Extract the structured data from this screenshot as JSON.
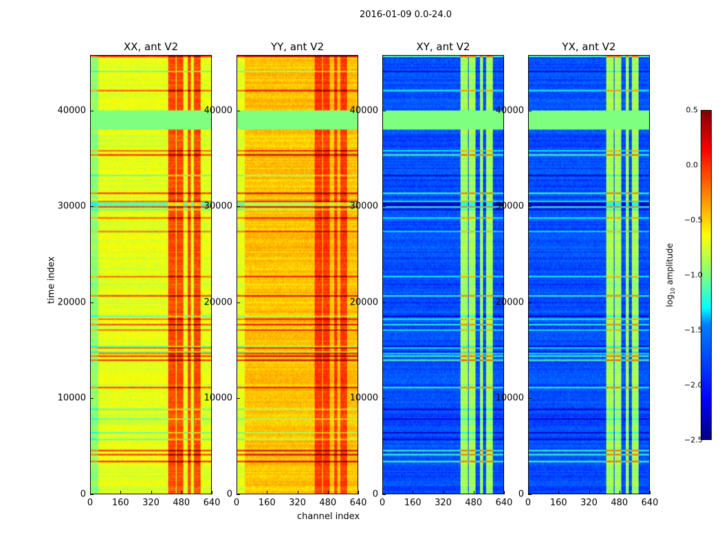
{
  "figure": {
    "suptitle": "2016-01-09 0.0-24.0"
  },
  "chart_data": {
    "type": "heatmap",
    "xlabel": "channel index",
    "ylabel": "time index",
    "xlim": [
      0,
      640
    ],
    "ylim": [
      0,
      45800
    ],
    "xticks": [
      "0",
      "160",
      "320",
      "480",
      "640"
    ],
    "yticks": [
      "0",
      "10000",
      "20000",
      "30000",
      "40000"
    ],
    "colorbar": {
      "label_prefix": "log",
      "label_sub": "10",
      "label_suffix": " amplitude",
      "range": [
        -2.5,
        0.5
      ],
      "ticks": [
        "0.5",
        "0.0",
        "−0.5",
        "−1.0",
        "−1.5",
        "−2.0",
        "−2.5"
      ],
      "colormap": "jet"
    },
    "flagged_time_range": [
      38200,
      40100
    ],
    "flagged_value": -1.0,
    "rfi_channel_ranges": [
      [
        410,
        450
      ],
      [
        455,
        490
      ],
      [
        515,
        530
      ],
      [
        545,
        580
      ]
    ],
    "panels": [
      {
        "title": "XX, ant V2",
        "base_level": -0.7,
        "rfi_level": -0.1
      },
      {
        "title": "YY, ant V2",
        "base_level": -0.45,
        "rfi_level": -0.05
      },
      {
        "title": "XY, ant V2",
        "base_level": -1.9,
        "rfi_level": -0.9
      },
      {
        "title": "YX, ant V2",
        "base_level": -1.9,
        "rfi_level": -0.9
      }
    ]
  }
}
